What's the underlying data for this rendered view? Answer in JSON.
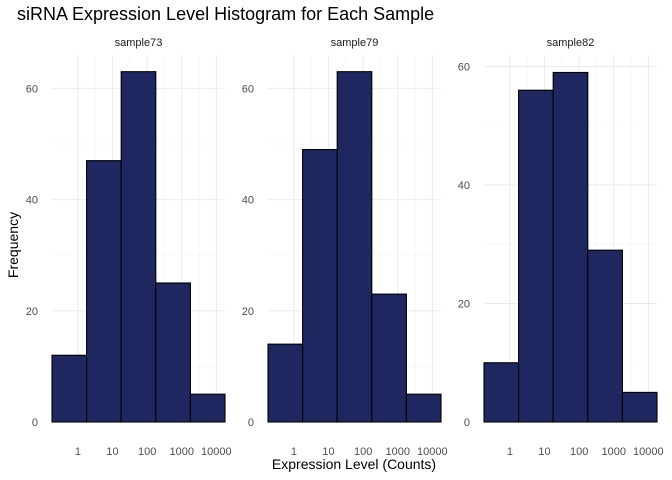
{
  "chart_data": {
    "type": "bar",
    "title": "siRNA Expression Level Histogram for Each Sample",
    "xlabel": "Expression Level (Counts)",
    "ylabel": "Frequency",
    "x_scale": "log10",
    "x_tick_labels": [
      "1",
      "10",
      "100",
      "1000",
      "10000"
    ],
    "x_tick_values": [
      1,
      10,
      100,
      1000,
      10000
    ],
    "bin_edges_log10": [
      -0.75,
      0.25,
      1.25,
      2.25,
      3.25,
      4.25
    ],
    "bar_fill": "#1f2761",
    "bar_outline": "#000000",
    "grid": true,
    "facets": [
      {
        "strip": "sample73",
        "values": [
          12,
          47,
          63,
          25,
          5
        ],
        "ylim": [
          0,
          66
        ],
        "y_ticks": [
          0,
          20,
          40,
          60
        ]
      },
      {
        "strip": "sample79",
        "values": [
          14,
          49,
          63,
          23,
          5
        ],
        "ylim": [
          0,
          66
        ],
        "y_ticks": [
          0,
          20,
          40,
          60
        ]
      },
      {
        "strip": "sample82",
        "values": [
          10,
          56,
          59,
          29,
          5
        ],
        "ylim": [
          0,
          61.95
        ],
        "y_ticks": [
          0,
          20,
          40,
          60
        ]
      }
    ]
  }
}
